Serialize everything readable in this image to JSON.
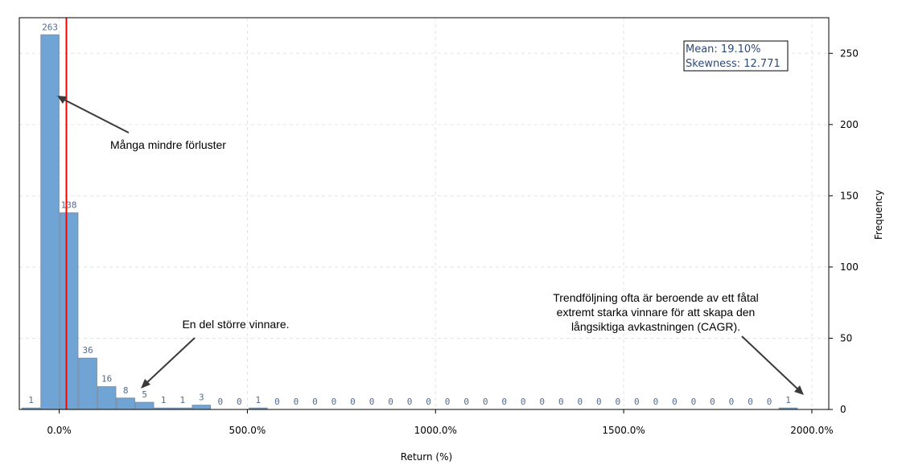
{
  "chart_data": {
    "type": "bar",
    "title": "",
    "xlabel": "Return (%)",
    "ylabel": "Frequency",
    "xlim": [
      -106,
      2045
    ],
    "ylim": [
      0,
      275
    ],
    "x_ticks": [
      0,
      500,
      1000,
      1500,
      2000
    ],
    "x_tick_labels": [
      "0.0%",
      "500.0%",
      "1000.0%",
      "1500.0%",
      "2000.0%"
    ],
    "y_ticks": [
      0,
      50,
      100,
      150,
      200,
      250
    ],
    "y_tick_labels": [
      "0",
      "50",
      "100",
      "150",
      "200",
      "250"
    ],
    "y_axis_side": "right",
    "grid": true,
    "bin_start": -100,
    "bin_width": 50.3,
    "values": [
      1,
      263,
      138,
      36,
      16,
      8,
      5,
      1,
      1,
      3,
      0,
      0,
      1,
      0,
      0,
      0,
      0,
      0,
      0,
      0,
      0,
      0,
      0,
      0,
      0,
      0,
      0,
      0,
      0,
      0,
      0,
      0,
      0,
      0,
      0,
      0,
      0,
      0,
      0,
      0,
      1
    ],
    "mean_line": {
      "x": 19.1,
      "color": "#ff0000"
    },
    "stats_box": {
      "lines": [
        "Mean: 19.10%",
        "Skewness: 12.771"
      ],
      "position": "top-right"
    },
    "annotations": [
      {
        "lines": [
          "Många mindre förluster"
        ]
      },
      {
        "lines": [
          "En del större vinnare."
        ]
      },
      {
        "lines": [
          "Trendföljning ofta är beroende av ett fåtal",
          "extremt starka vinnare för att skapa den",
          "långsiktiga avkastningen (CAGR)."
        ]
      }
    ],
    "colors": {
      "bar": "#6fa4d4",
      "bar_edge": "#7a8fa8",
      "label": "#556b8d"
    }
  }
}
